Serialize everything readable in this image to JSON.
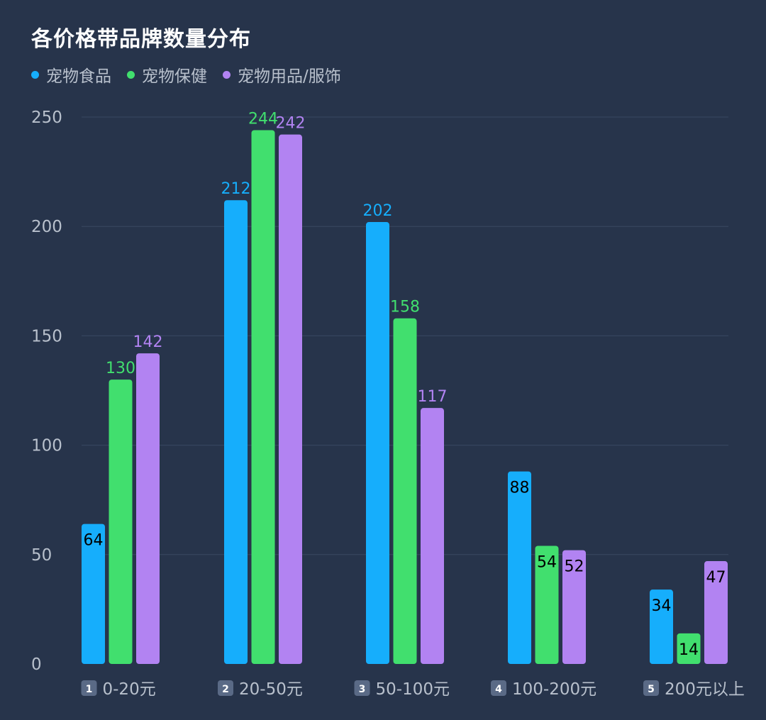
{
  "chart_data": {
    "type": "bar",
    "title": "各价格带品牌数量分布",
    "categories": [
      "0-20元",
      "20-50元",
      "50-100元",
      "100-200元",
      "200元以上"
    ],
    "category_badges": [
      "1",
      "2",
      "3",
      "4",
      "5"
    ],
    "series": [
      {
        "name": "宠物食品",
        "color": "#16aefc",
        "values": [
          64,
          212,
          202,
          88,
          34
        ]
      },
      {
        "name": "宠物保健",
        "color": "#41df6e",
        "values": [
          130,
          244,
          158,
          54,
          14
        ]
      },
      {
        "name": "宠物用品/服饰",
        "color": "#b283f2",
        "values": [
          142,
          242,
          117,
          52,
          47
        ]
      }
    ],
    "ylim": [
      0,
      250
    ],
    "yticks": [
      0,
      50,
      100,
      150,
      200,
      250
    ],
    "grid": true,
    "legend_position": "top-left",
    "label_colors": {
      "outside": "series-color",
      "inside": "#000000"
    }
  }
}
